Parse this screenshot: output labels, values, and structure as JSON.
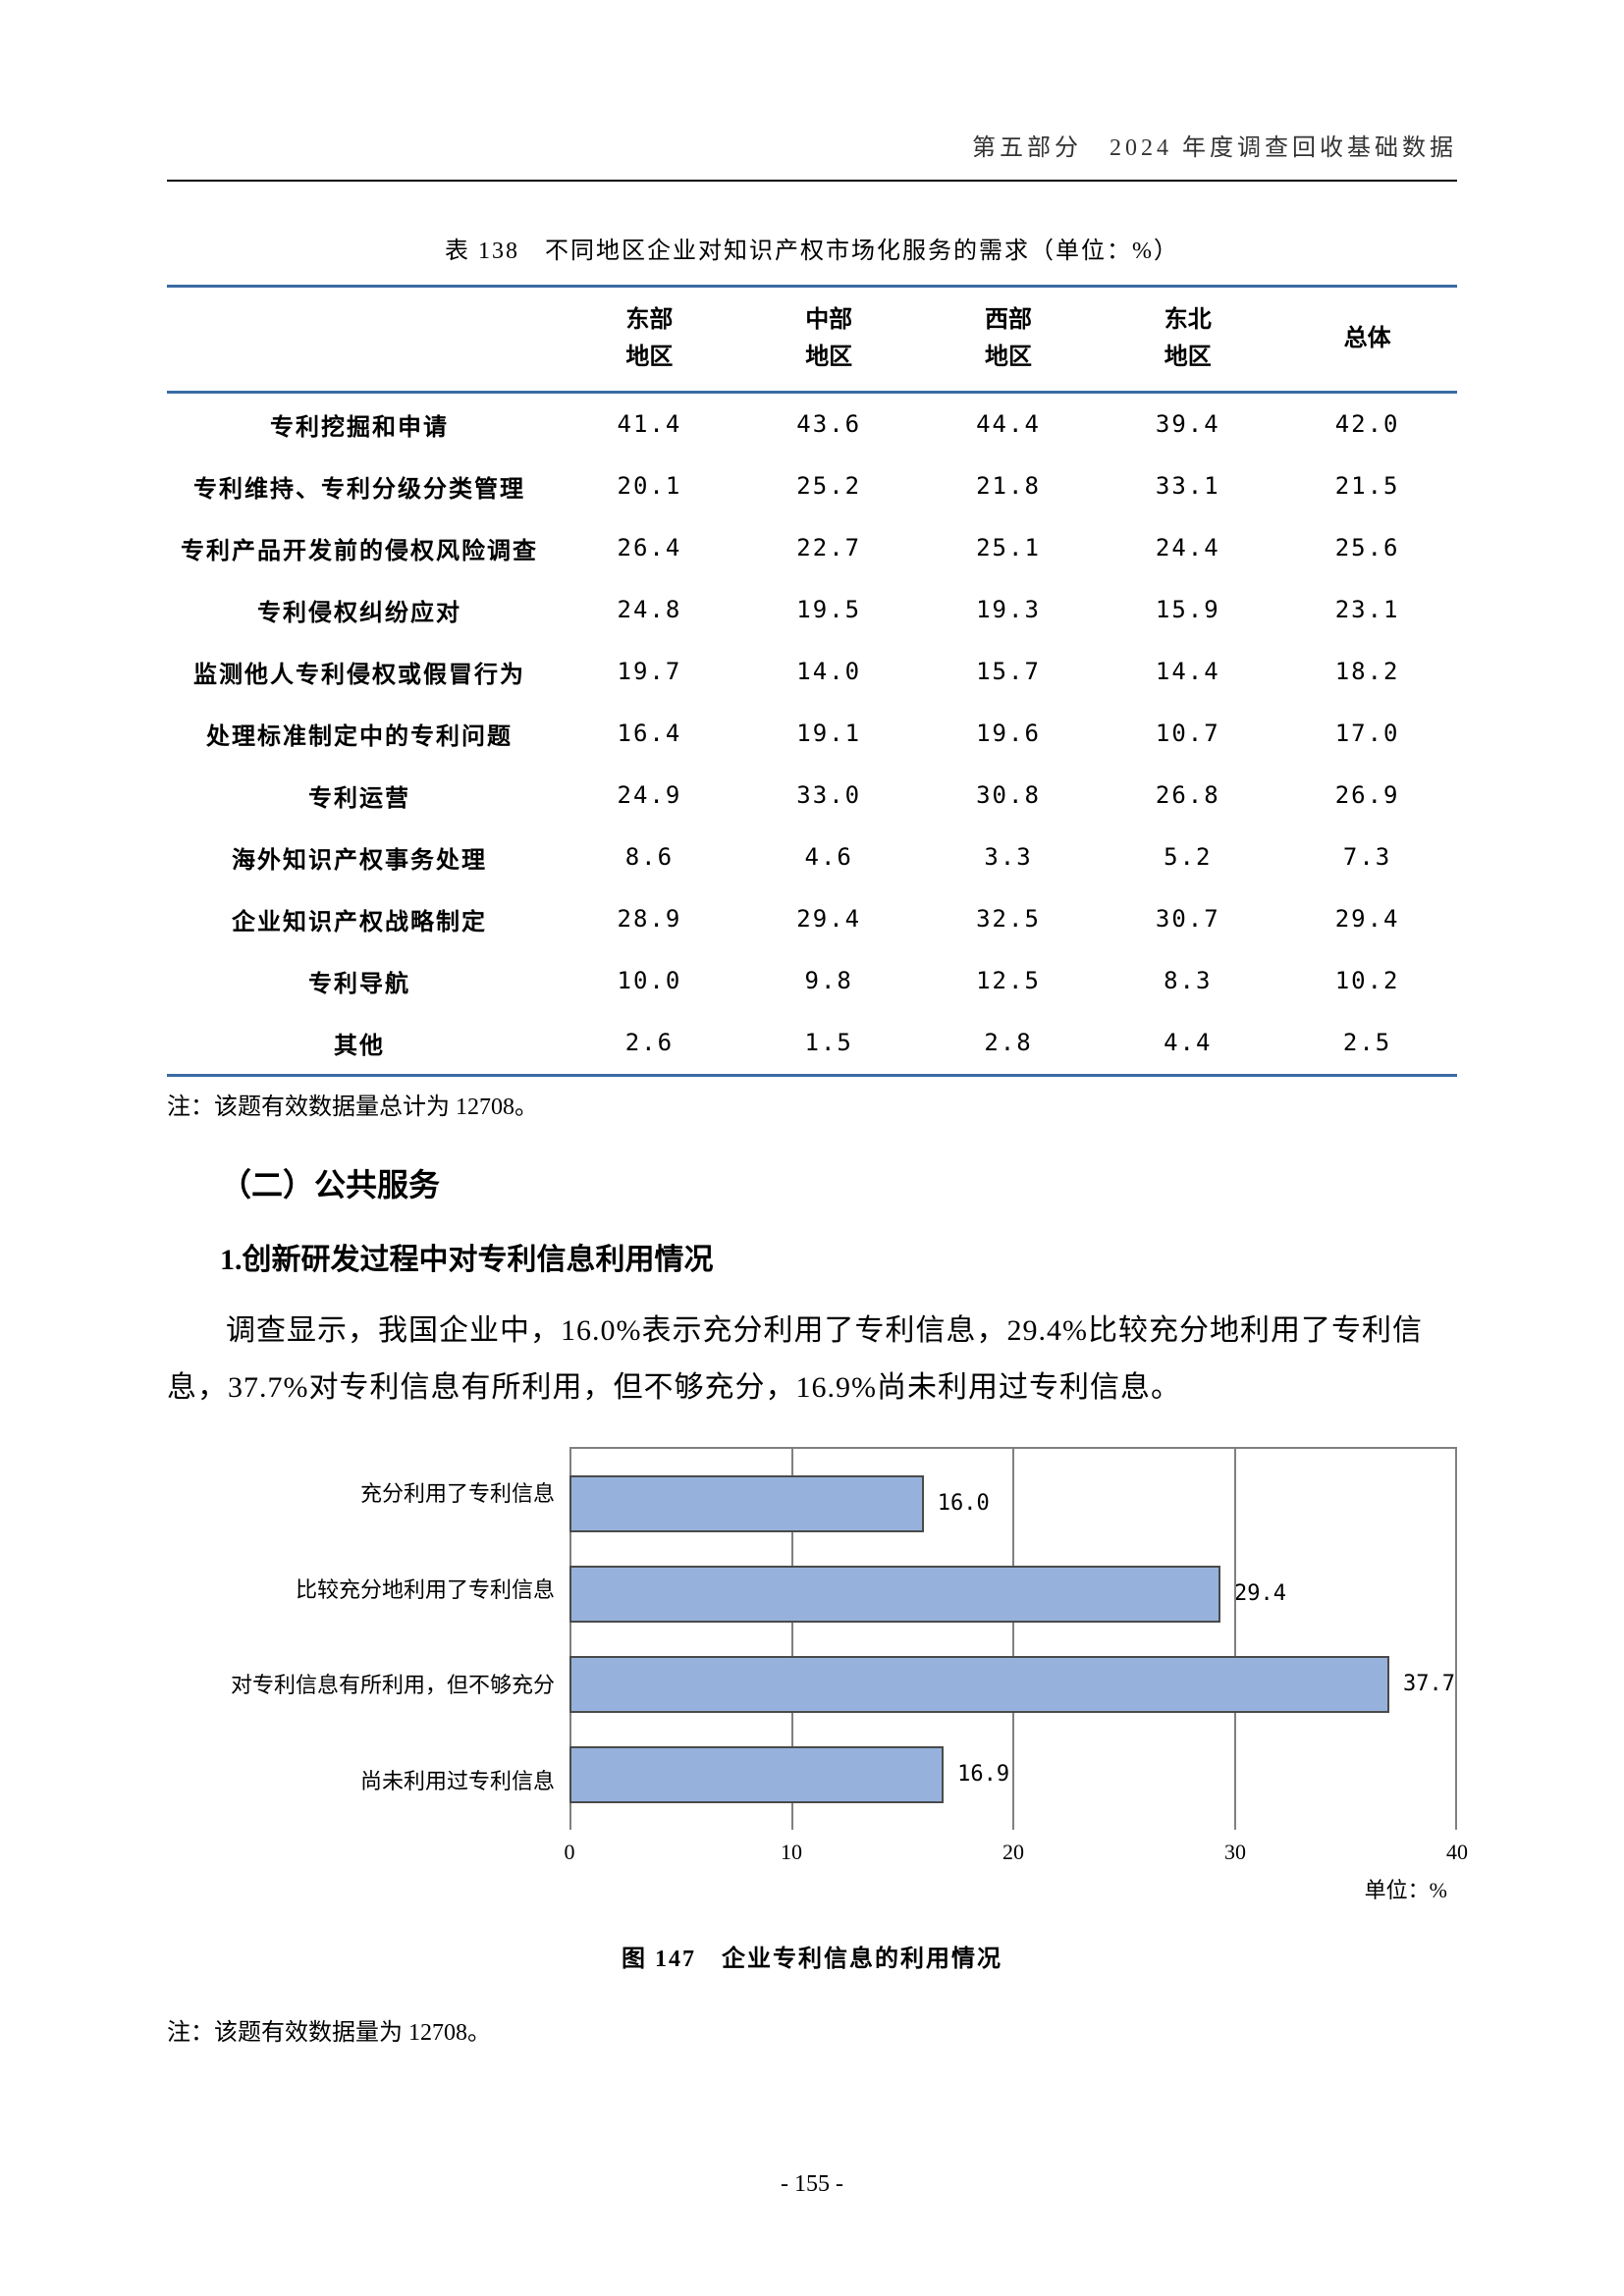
{
  "header": {
    "text": "第五部分　2024 年度调查回收基础数据"
  },
  "table": {
    "title": "表 138　不同地区企业对知识产权市场化服务的需求（单位：%）",
    "columns": [
      "东部\n地区",
      "中部\n地区",
      "西部\n地区",
      "东北\n地区",
      "总体"
    ],
    "rows": [
      {
        "label": "专利挖掘和申请",
        "values": [
          "41.4",
          "43.6",
          "44.4",
          "39.4",
          "42.0"
        ]
      },
      {
        "label": "专利维持、专利分级分类管理",
        "values": [
          "20.1",
          "25.2",
          "21.8",
          "33.1",
          "21.5"
        ]
      },
      {
        "label": "专利产品开发前的侵权风险调查",
        "values": [
          "26.4",
          "22.7",
          "25.1",
          "24.4",
          "25.6"
        ]
      },
      {
        "label": "专利侵权纠纷应对",
        "values": [
          "24.8",
          "19.5",
          "19.3",
          "15.9",
          "23.1"
        ]
      },
      {
        "label": "监测他人专利侵权或假冒行为",
        "values": [
          "19.7",
          "14.0",
          "15.7",
          "14.4",
          "18.2"
        ]
      },
      {
        "label": "处理标准制定中的专利问题",
        "values": [
          "16.4",
          "19.1",
          "19.6",
          "10.7",
          "17.0"
        ]
      },
      {
        "label": "专利运营",
        "values": [
          "24.9",
          "33.0",
          "30.8",
          "26.8",
          "26.9"
        ]
      },
      {
        "label": "海外知识产权事务处理",
        "values": [
          "8.6",
          "4.6",
          "3.3",
          "5.2",
          "7.3"
        ]
      },
      {
        "label": "企业知识产权战略制定",
        "values": [
          "28.9",
          "29.4",
          "32.5",
          "30.7",
          "29.4"
        ]
      },
      {
        "label": "专利导航",
        "values": [
          "10.0",
          "9.8",
          "12.5",
          "8.3",
          "10.2"
        ]
      },
      {
        "label": "其他",
        "values": [
          "2.6",
          "1.5",
          "2.8",
          "4.4",
          "2.5"
        ]
      }
    ],
    "note": "注：该题有效数据量总计为 12708。"
  },
  "section": {
    "heading": "（二）公共服务",
    "subheading": "1.创新研发过程中对专利信息利用情况",
    "body": "调查显示，我国企业中，16.0%表示充分利用了专利信息，29.4%比较充分地利用了专利信息，37.7%对专利信息有所利用，但不够充分，16.9%尚未利用过专利信息。"
  },
  "chart": {
    "type": "bar-horizontal",
    "categories": [
      "充分利用了专利信息",
      "比较充分地利用了专利信息",
      "对专利信息有所利用，但不够充分",
      "尚未利用过专利信息"
    ],
    "values": [
      16.0,
      29.4,
      37.7,
      16.9
    ],
    "value_labels": [
      "16.0",
      "29.4",
      "37.7",
      "16.9"
    ],
    "bar_color": "#96b2dc",
    "bar_border_color": "#4a4a4a",
    "grid_color": "#808080",
    "xmax": 40,
    "xtick_step": 10,
    "xticks": [
      "0",
      "10",
      "20",
      "30",
      "40"
    ],
    "axis_unit": "单位：%",
    "title": "图 147　企业专利信息的利用情况",
    "note": "注：该题有效数据量为 12708。"
  },
  "page_number": "- 155 -"
}
